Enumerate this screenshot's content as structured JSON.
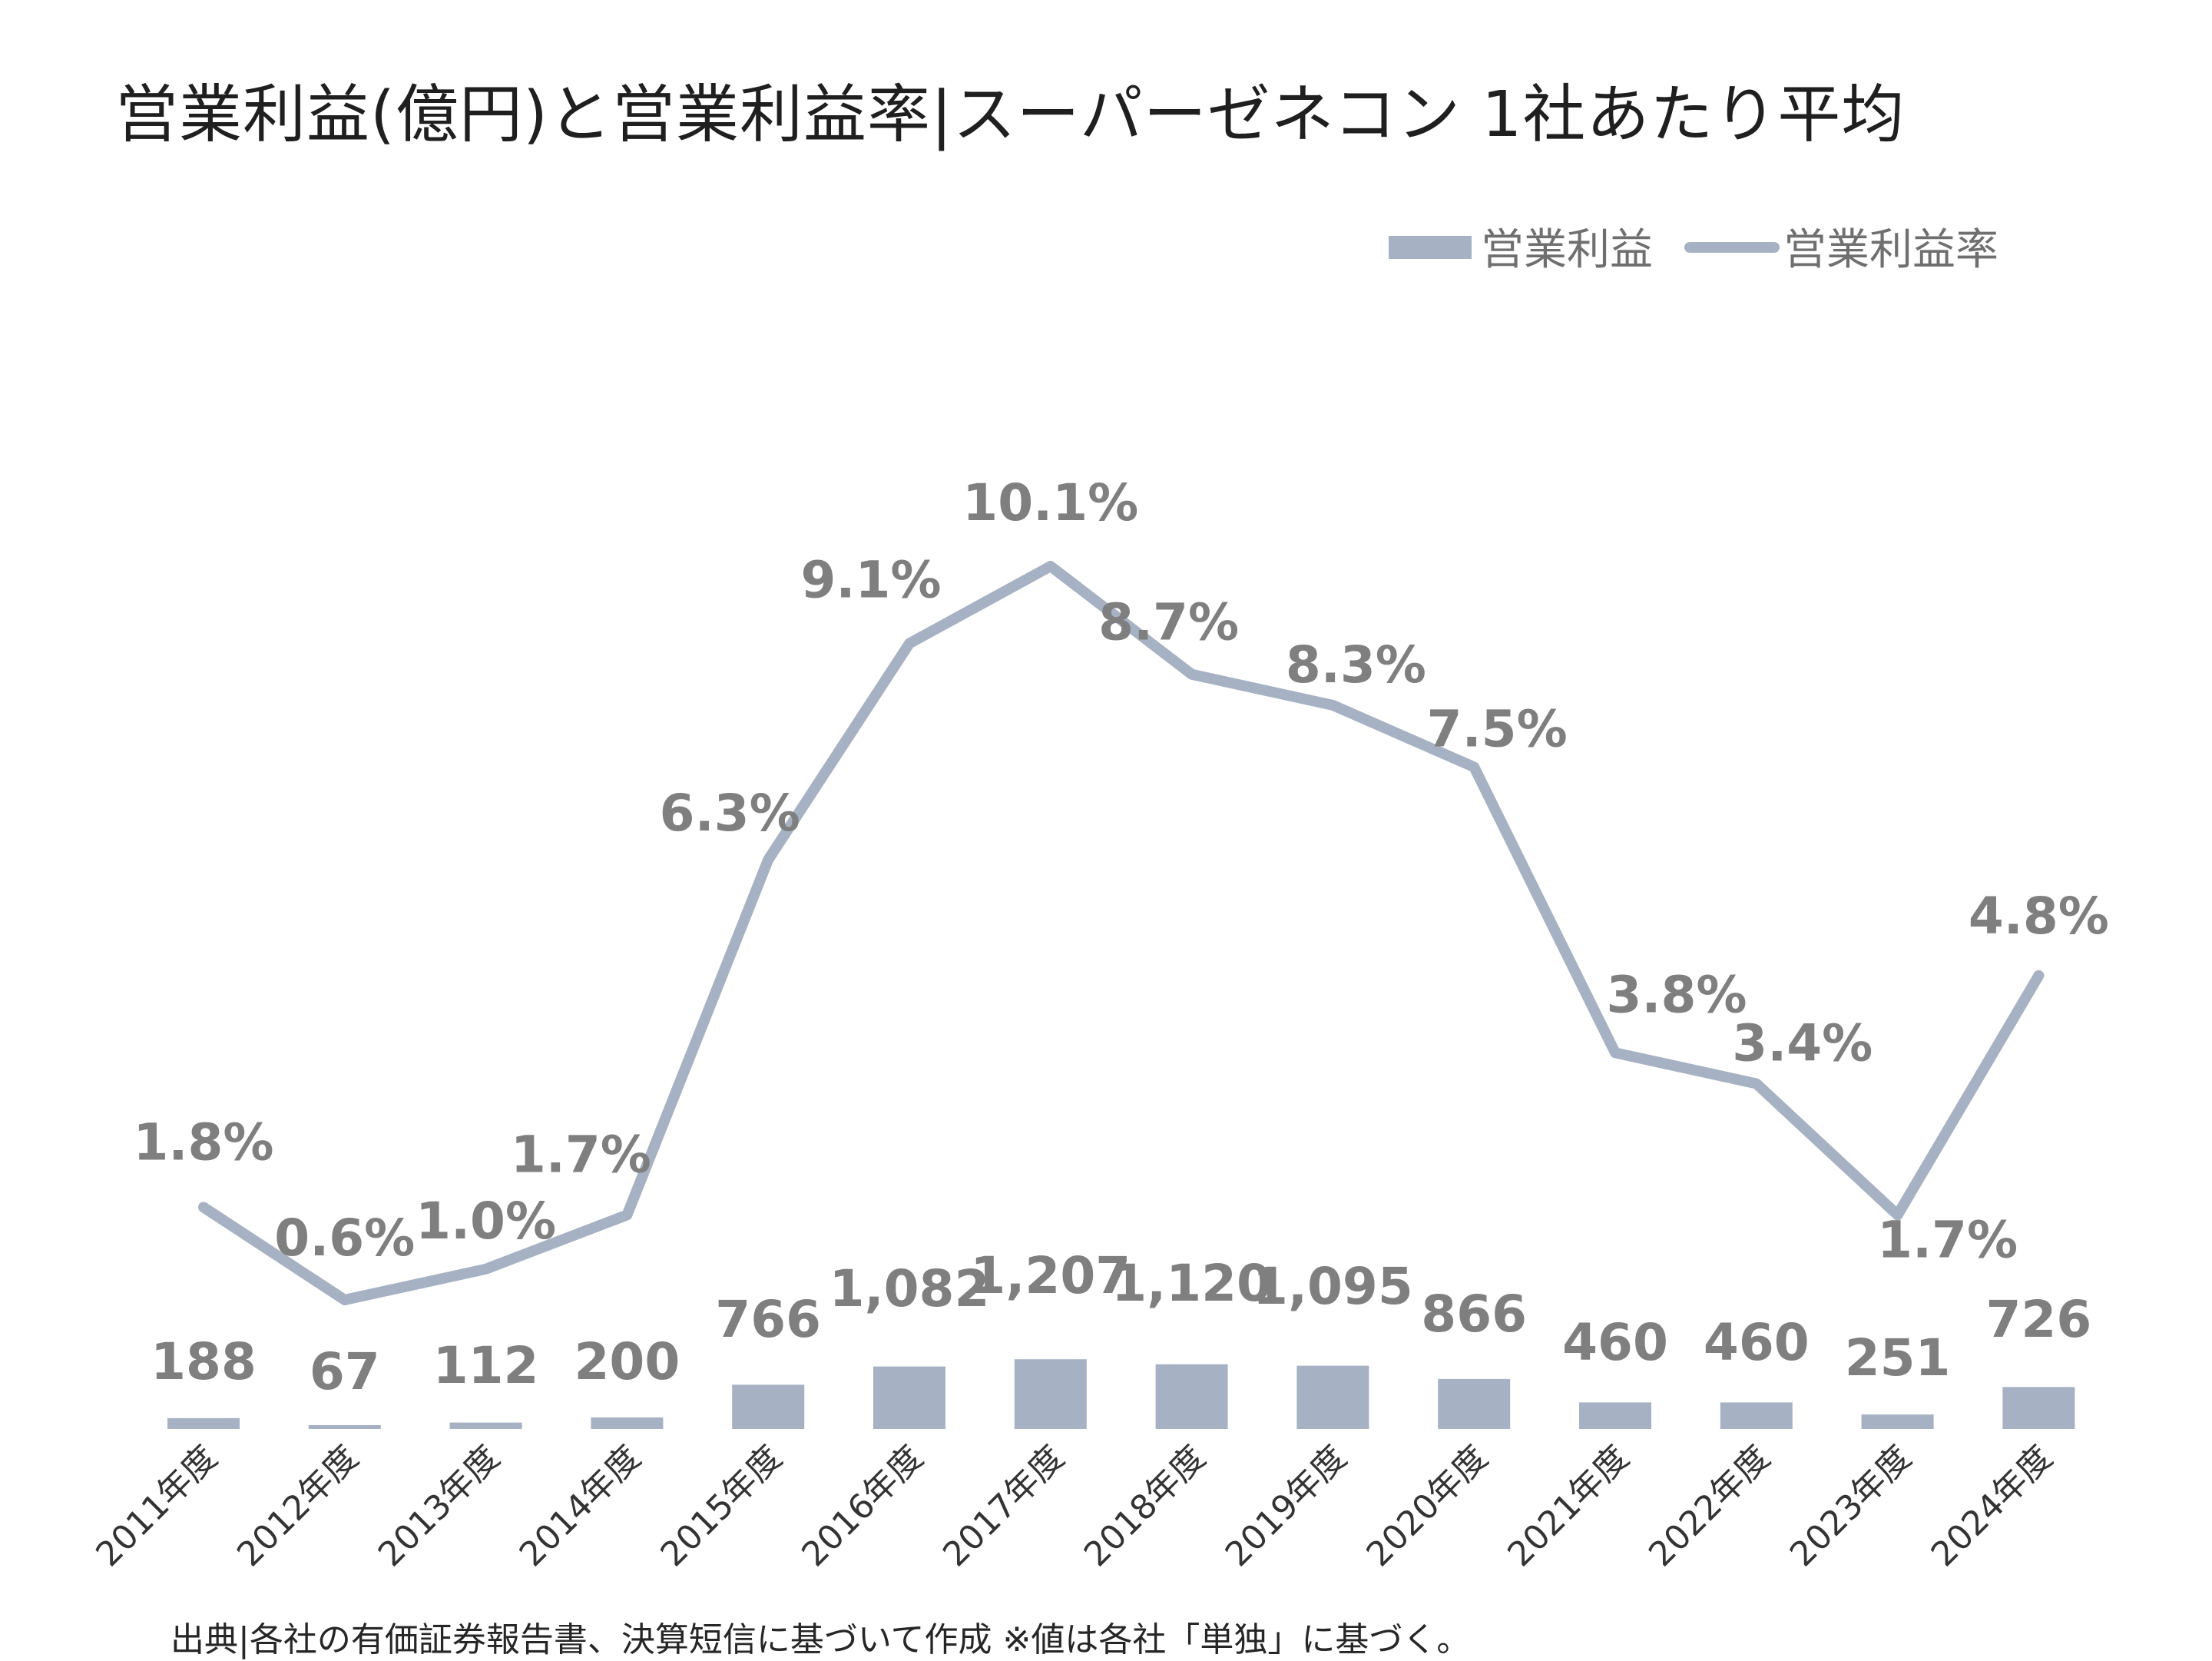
{
  "title": "営業利益(億円)と営業利益率|スーパーゼネコン 1社あたり平均",
  "source": "出典|各社の有価証券報告書、決算短信に基づいて作成 ※値は各社「単独」に基づく。",
  "colors": {
    "bar": "#a6b2c4",
    "line": "#a6b2c4",
    "label": "#7f7f7f",
    "text": "#1f1f1f"
  },
  "chart_data": {
    "type": "bar+line",
    "categories": [
      "2011年度",
      "2012年度",
      "2013年度",
      "2014年度",
      "2015年度",
      "2016年度",
      "2017年度",
      "2018年度",
      "2019年度",
      "2020年度",
      "2021年度",
      "2022年度",
      "2023年度",
      "2024年度"
    ],
    "series": [
      {
        "name": "営業利益",
        "type": "bar",
        "axis": "left",
        "values": [
          188,
          67,
          112,
          200,
          766,
          1082,
          1207,
          1120,
          1095,
          866,
          460,
          460,
          251,
          726
        ],
        "labels": [
          "188",
          "67",
          "112",
          "200",
          "766",
          "1,082",
          "1,207",
          "1,120",
          "1,095",
          "866",
          "460",
          "460",
          "251",
          "726"
        ]
      },
      {
        "name": "営業利益率",
        "type": "line",
        "axis": "right",
        "values": [
          1.8,
          0.6,
          1.0,
          1.7,
          6.3,
          9.1,
          10.1,
          8.7,
          8.3,
          7.5,
          3.8,
          3.4,
          1.7,
          4.8
        ],
        "labels": [
          "1.8%",
          "0.6%",
          "1.0%",
          "1.7%",
          "6.3%",
          "9.1%",
          "10.1%",
          "8.7%",
          "8.3%",
          "7.5%",
          "3.8%",
          "3.4%",
          "1.7%",
          "4.8%"
        ]
      }
    ],
    "legend_position": "top-right",
    "grid": false
  }
}
